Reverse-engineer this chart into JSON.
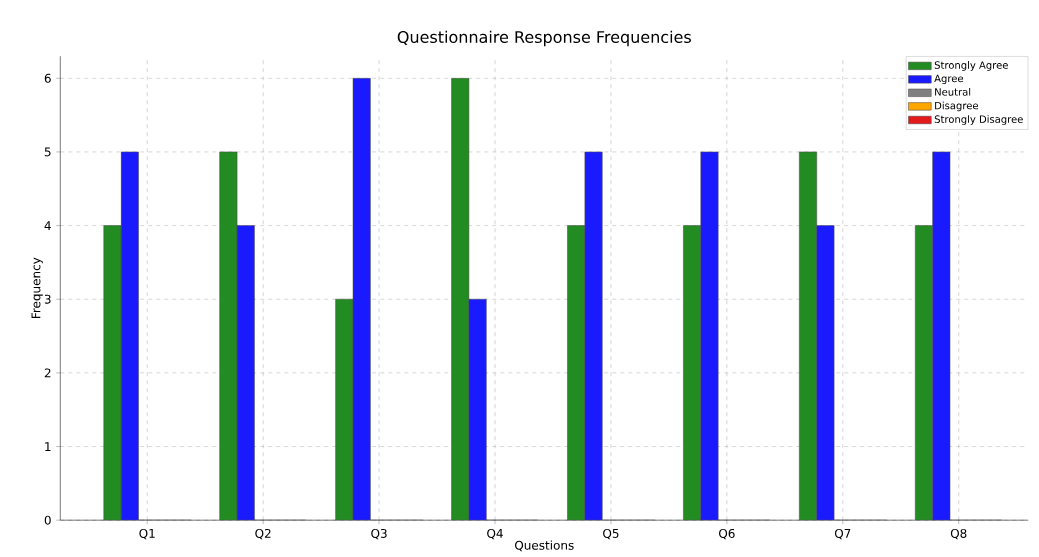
{
  "chart_data": {
    "type": "bar",
    "title": "Questionnaire Response Frequencies",
    "xlabel": "Questions",
    "ylabel": "Frequency",
    "categories": [
      "Q1",
      "Q2",
      "Q3",
      "Q4",
      "Q5",
      "Q6",
      "Q7",
      "Q8"
    ],
    "series": [
      {
        "name": "Strongly Agree",
        "color": "#228b22",
        "values": [
          4,
          5,
          3,
          6,
          4,
          4,
          5,
          4
        ]
      },
      {
        "name": "Agree",
        "color": "#1a1aff",
        "values": [
          5,
          4,
          6,
          3,
          5,
          5,
          4,
          5
        ]
      },
      {
        "name": "Neutral",
        "color": "#808080",
        "values": [
          0,
          0,
          0,
          0,
          0,
          0,
          0,
          0
        ]
      },
      {
        "name": "Disagree",
        "color": "#ffa500",
        "values": [
          0,
          0,
          0,
          0,
          0,
          0,
          0,
          0
        ]
      },
      {
        "name": "Strongly Disagree",
        "color": "#e31a1c",
        "values": [
          0,
          0,
          0,
          0,
          0,
          0,
          0,
          0
        ]
      }
    ],
    "ylim": [
      0,
      6.3
    ],
    "yticks": [
      0,
      1,
      2,
      3,
      4,
      5,
      6
    ],
    "grid": true,
    "legend": "top right"
  }
}
